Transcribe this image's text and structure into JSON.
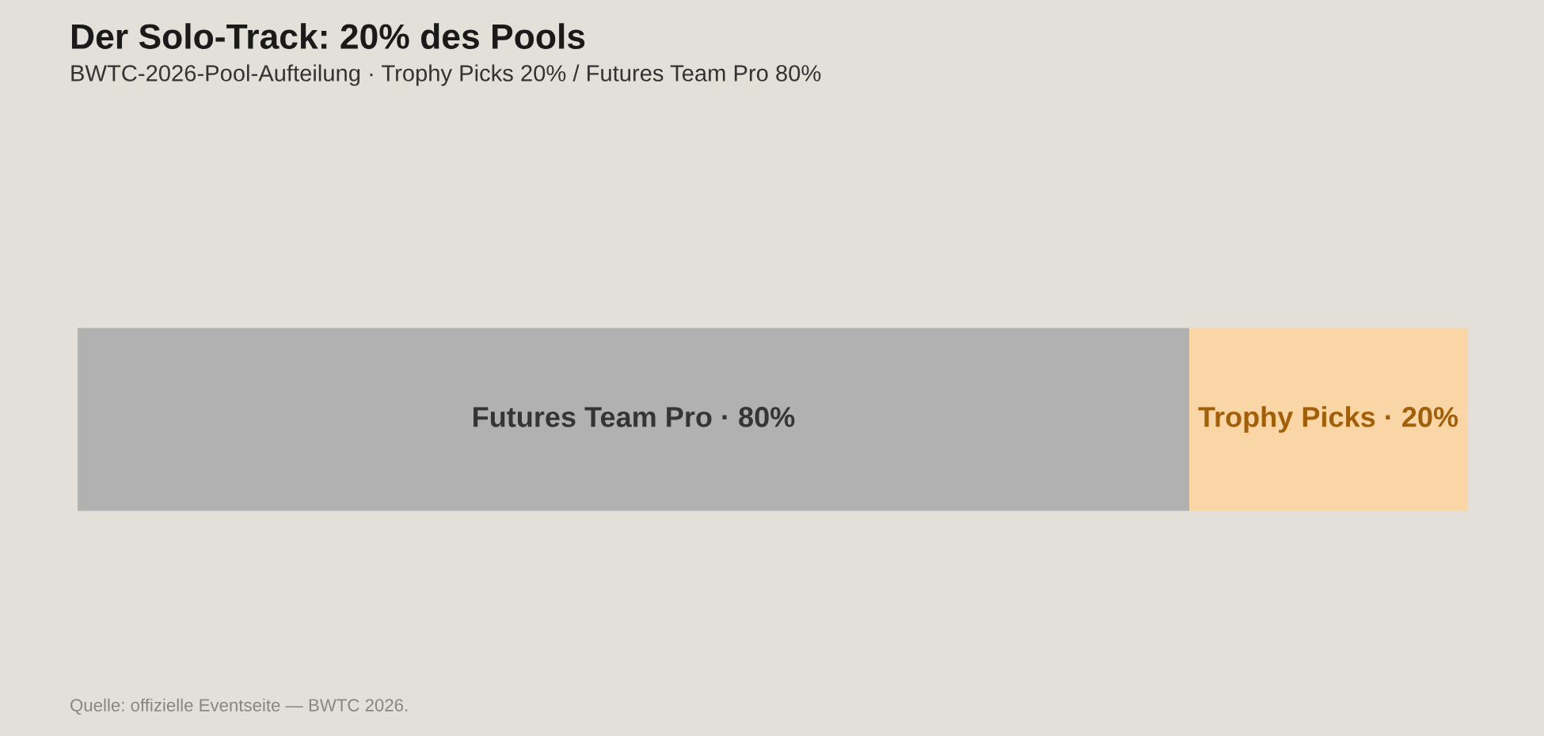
{
  "chart_data": {
    "type": "bar",
    "orientation": "horizontal",
    "stacked": true,
    "title": "Der Solo-Track: 20% des Pools",
    "subtitle": "BWTC-2026-Pool-Aufteilung · Trophy Picks 20% / Futures Team Pro 80%",
    "categories": [
      null
    ],
    "series": [
      {
        "color": "#b1b1b1",
        "values": [
          80
        ],
        "value_labels": [
          "Futures Team Pro · 80%"
        ]
      },
      {
        "color": "#fad5a5",
        "values": [
          20
        ],
        "value_labels": [
          "Trophy Picks · 20%"
        ]
      }
    ],
    "xlim": [
      0,
      100
    ],
    "tick_labels": false,
    "annotations": [
      "Quelle: offizielle Eventseite — BWTC 2026."
    ]
  }
}
